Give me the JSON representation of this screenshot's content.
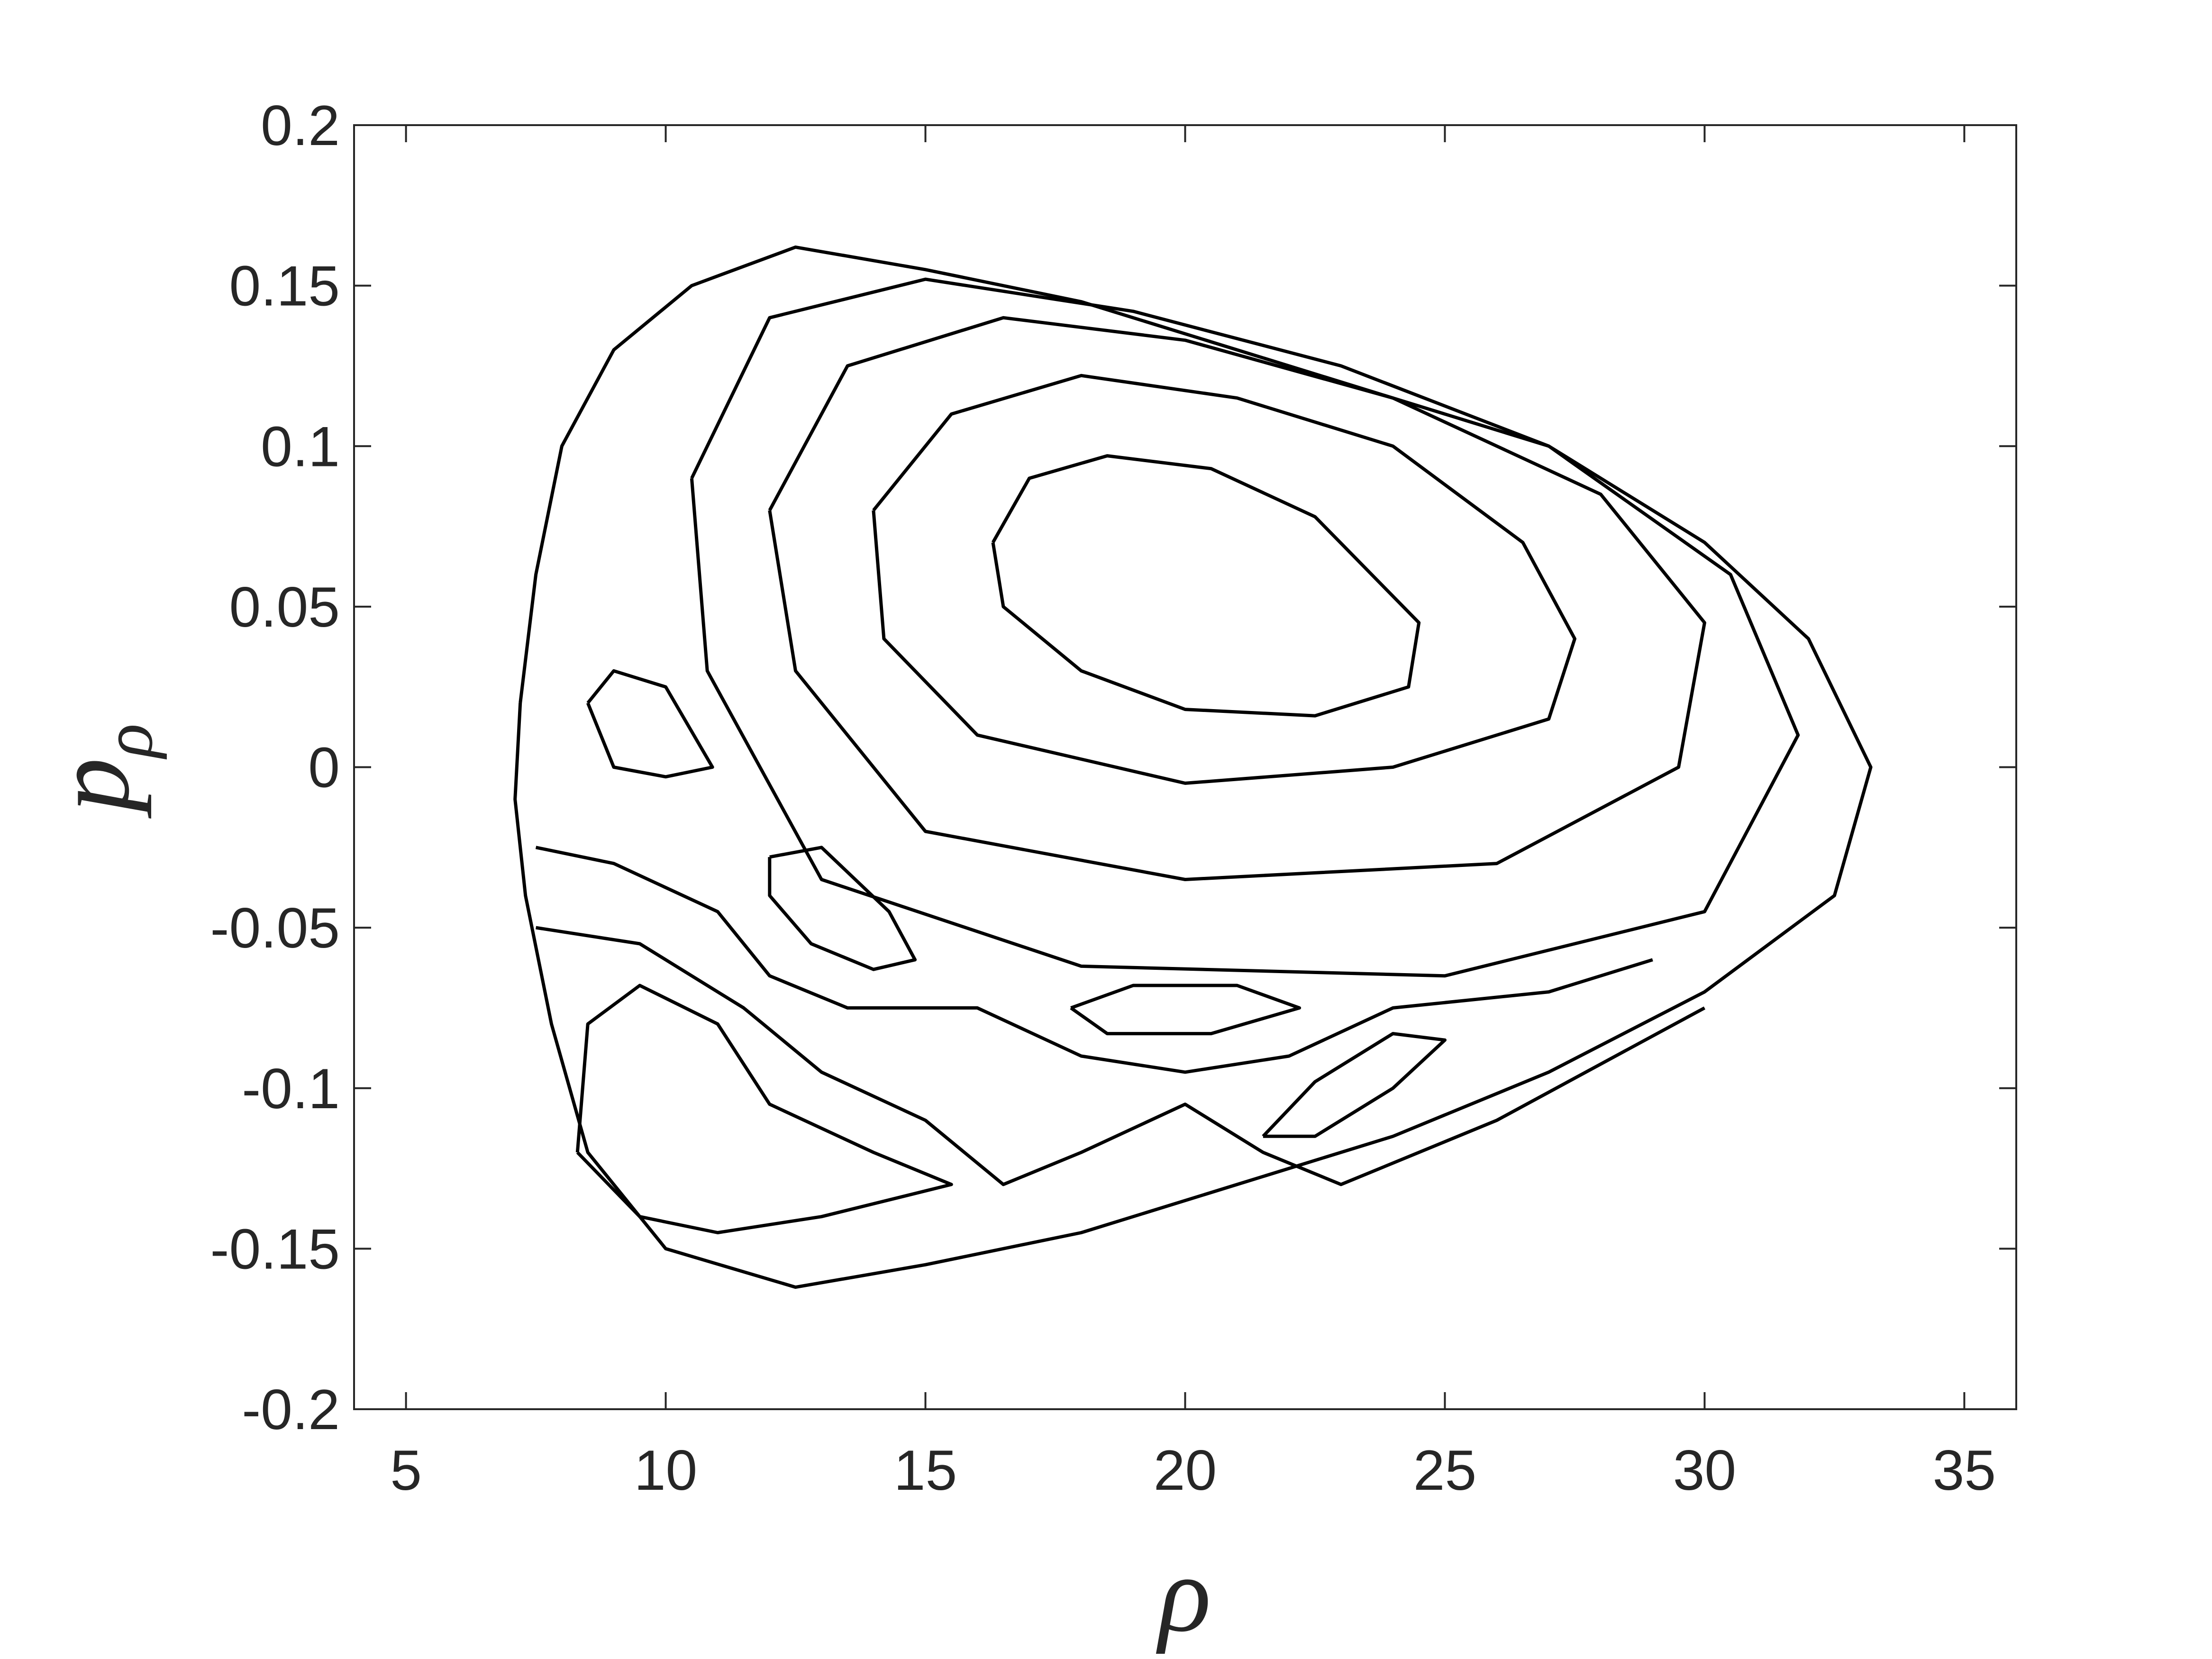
{
  "chart_data": {
    "type": "line",
    "xlabel": "ρ",
    "ylabel": "p",
    "ylabel_sub": "ρ",
    "xlim": [
      4,
      36
    ],
    "ylim": [
      -0.2,
      0.2
    ],
    "xticks": [
      5,
      10,
      15,
      20,
      25,
      30,
      35
    ],
    "yticks": [
      -0.2,
      -0.15,
      -0.1,
      -0.05,
      0,
      0.05,
      0.1,
      0.15,
      0.2
    ],
    "color": "#000000",
    "series": [
      {
        "x": [
          7.2,
          7.5,
          8,
          9,
          10.5,
          12.5,
          15,
          18,
          21,
          24,
          27,
          30,
          32,
          33.2,
          32.5,
          30,
          27,
          24,
          21,
          18,
          15,
          12.5,
          10,
          8.5,
          7.8,
          7.3,
          7.1,
          7.2
        ],
        "values": [
          0.02,
          0.06,
          0.1,
          0.13,
          0.15,
          0.162,
          0.155,
          0.145,
          0.13,
          0.115,
          0.1,
          0.07,
          0.04,
          0.0,
          -0.04,
          -0.07,
          -0.095,
          -0.115,
          -0.13,
          -0.145,
          -0.155,
          -0.162,
          -0.15,
          -0.12,
          -0.08,
          -0.04,
          -0.01,
          0.02
        ]
      },
      {
        "x": [
          16.3,
          17,
          18.5,
          20.5,
          22.5,
          24.5,
          24.3,
          22.5,
          20,
          18,
          16.5,
          16.3
        ],
        "values": [
          0.07,
          0.09,
          0.097,
          0.093,
          0.078,
          0.045,
          0.025,
          0.016,
          0.018,
          0.03,
          0.05,
          0.07
        ]
      },
      {
        "x": [
          14,
          15.5,
          18,
          21,
          24,
          26.5,
          27.5,
          27,
          24,
          20,
          16,
          14.2,
          14
        ],
        "values": [
          0.08,
          0.11,
          0.122,
          0.115,
          0.1,
          0.07,
          0.04,
          0.015,
          0.0,
          -0.005,
          0.01,
          0.04,
          0.08
        ]
      },
      {
        "x": [
          12,
          13.5,
          16.5,
          20,
          24,
          28,
          30,
          29.5,
          26,
          20,
          15,
          12.5,
          12
        ],
        "values": [
          0.08,
          0.125,
          0.14,
          0.133,
          0.115,
          0.085,
          0.045,
          0.0,
          -0.03,
          -0.035,
          -0.02,
          0.03,
          0.08
        ]
      },
      {
        "x": [
          10.5,
          12,
          15,
          19,
          23,
          27,
          30.5,
          31.8,
          30,
          25,
          18,
          13,
          10.8,
          10.5
        ],
        "values": [
          0.09,
          0.14,
          0.152,
          0.142,
          0.125,
          0.1,
          0.06,
          0.01,
          -0.045,
          -0.065,
          -0.062,
          -0.035,
          0.03,
          0.09
        ]
      },
      {
        "x": [
          8.5,
          9,
          10,
          10.9,
          10,
          9,
          8.5
        ],
        "values": [
          0.02,
          0.03,
          0.025,
          0.0,
          -0.003,
          0.0,
          0.02
        ]
      },
      {
        "x": [
          12,
          13,
          14.3,
          14.8,
          14,
          12.8,
          12,
          12
        ],
        "values": [
          -0.028,
          -0.025,
          -0.045,
          -0.06,
          -0.063,
          -0.055,
          -0.04,
          -0.028
        ]
      },
      {
        "x": [
          17.8,
          19,
          21,
          22.2,
          20.5,
          18.5,
          17.8
        ],
        "values": [
          -0.075,
          -0.068,
          -0.068,
          -0.075,
          -0.083,
          -0.083,
          -0.075
        ]
      },
      {
        "x": [
          21.5,
          22.5,
          24,
          25,
          24,
          22.5,
          21.5
        ],
        "values": [
          -0.115,
          -0.098,
          -0.083,
          -0.085,
          -0.1,
          -0.115,
          -0.115
        ]
      },
      {
        "x": [
          8.3,
          8.5,
          9.5,
          11,
          12,
          14,
          15.5,
          13,
          11,
          9.5,
          8.3
        ],
        "values": [
          -0.12,
          -0.08,
          -0.068,
          -0.08,
          -0.105,
          -0.12,
          -0.13,
          -0.14,
          -0.145,
          -0.14,
          -0.12
        ]
      },
      {
        "x": [
          7.5,
          9,
          11,
          12,
          13.5,
          16,
          18,
          20,
          22,
          24,
          27,
          29
        ],
        "values": [
          -0.025,
          -0.03,
          -0.045,
          -0.065,
          -0.075,
          -0.075,
          -0.09,
          -0.095,
          -0.09,
          -0.075,
          -0.07,
          -0.06
        ]
      },
      {
        "x": [
          7.5,
          9.5,
          11.5,
          13,
          15,
          16.5,
          18,
          20,
          21.5,
          23,
          26,
          30
        ],
        "values": [
          -0.05,
          -0.055,
          -0.075,
          -0.095,
          -0.11,
          -0.13,
          -0.12,
          -0.105,
          -0.12,
          -0.13,
          -0.11,
          -0.075
        ]
      }
    ]
  }
}
